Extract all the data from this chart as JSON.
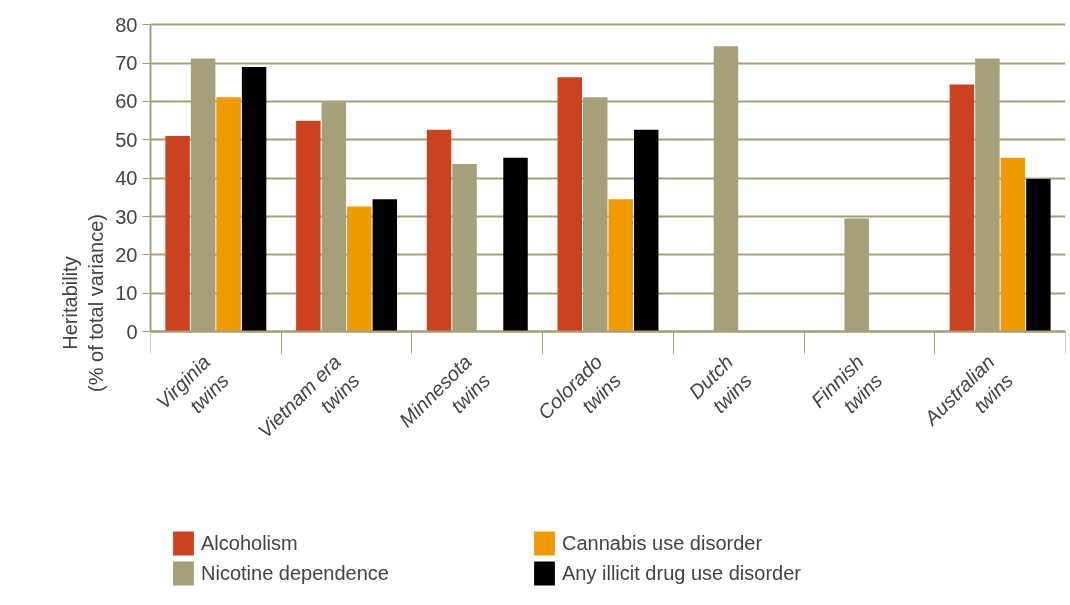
{
  "chart_data": {
    "type": "bar",
    "ylabel": "Heritability\n(% of total variance)",
    "categories": [
      "Virginia twins",
      "Vietnam era twins",
      "Minnesota twins",
      "Colorado twins",
      "Dutch twins",
      "Finnish twins",
      "Australian twins"
    ],
    "series": [
      {
        "name": "Alcoholism",
        "color": "#cb4220",
        "values": [
          51,
          55,
          52.6,
          66.3,
          null,
          null,
          64.4
        ]
      },
      {
        "name": "Nicotine dependence",
        "color": "#a59f7a",
        "values": [
          71.2,
          59.8,
          43.7,
          61.1,
          74.4,
          29.5,
          71.2
        ]
      },
      {
        "name": "Cannabis use disorder",
        "color": "#ef9b00",
        "values": [
          61.1,
          32.6,
          null,
          34.5,
          null,
          null,
          45.3
        ]
      },
      {
        "name": "Any illicit drug use disorder",
        "color": "#000000",
        "values": [
          69,
          34.5,
          45.3,
          52.6,
          null,
          null,
          39.8
        ]
      }
    ],
    "ylim": [
      0,
      80
    ],
    "yticks": [
      0,
      10,
      20,
      30,
      40,
      50,
      60,
      70,
      80
    ],
    "grid": "y",
    "legend": "bottom"
  }
}
